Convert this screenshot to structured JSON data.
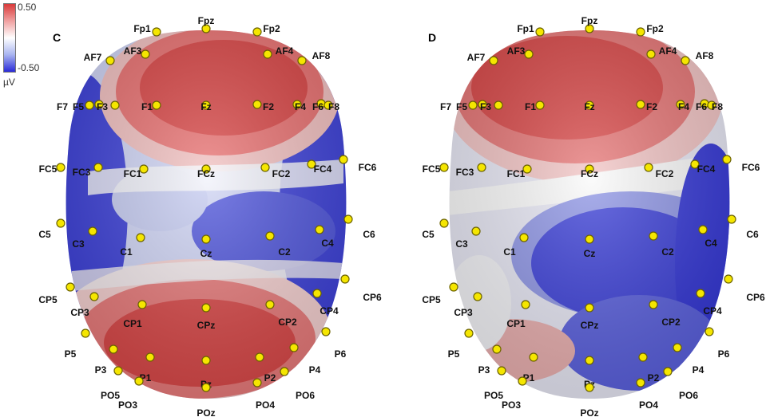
{
  "colorbar": {
    "max_label": "0.50",
    "min_label": "-0.50",
    "unit": "µV",
    "colors": {
      "max": "#d93a3a",
      "mid": "#ffffff",
      "min": "#2a2ad8"
    }
  },
  "panels": [
    {
      "id": "C",
      "label": "C"
    },
    {
      "id": "D",
      "label": "D"
    }
  ],
  "electrodes": [
    "Fp1",
    "Fpz",
    "Fp2",
    "AF7",
    "AF3",
    "AF4",
    "AF8",
    "F7",
    "F5",
    "F3",
    "F1",
    "Fz",
    "F2",
    "F4",
    "F6",
    "F8",
    "FC5",
    "FC3",
    "FC1",
    "FCz",
    "FC2",
    "FC4",
    "FC6",
    "C5",
    "C3",
    "C1",
    "Cz",
    "C2",
    "C4",
    "C6",
    "CP5",
    "CP3",
    "CP1",
    "CPz",
    "CP2",
    "CP4",
    "CP6",
    "P5",
    "P3",
    "P1",
    "Pz",
    "P2",
    "P4",
    "P6",
    "PO5",
    "PO3",
    "POz",
    "PO4",
    "PO6"
  ]
}
